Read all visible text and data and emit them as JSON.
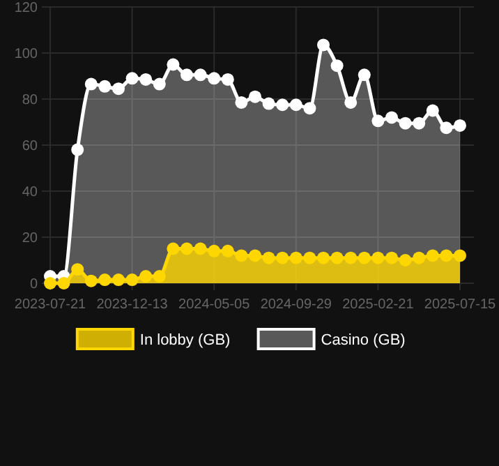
{
  "chart_data": {
    "type": "area",
    "categories": [
      "2023-07-21",
      null,
      null,
      null,
      null,
      null,
      "2023-12-13",
      null,
      null,
      null,
      null,
      null,
      "2024-05-05",
      null,
      null,
      null,
      null,
      null,
      "2024-09-29",
      null,
      null,
      null,
      null,
      null,
      "2025-02-21",
      null,
      null,
      null,
      null,
      null,
      "2025-07-15"
    ],
    "series": [
      {
        "name": "Casino (GB)",
        "color": "#ffffff",
        "values": [
          3,
          3,
          58,
          86.5,
          85.5,
          84.5,
          89,
          88.5,
          86.5,
          95,
          90.5,
          90.5,
          89,
          88.5,
          78.5,
          81,
          78,
          77.5,
          77.5,
          76,
          103.5,
          94.5,
          78.5,
          90.5,
          70.5,
          72,
          69.5,
          69.5,
          75,
          67.5,
          68.5
        ]
      },
      {
        "name": "In lobby (GB)",
        "color": "#ffd700",
        "values": [
          0,
          0,
          6,
          1,
          1.5,
          1.5,
          1.5,
          3,
          3,
          15,
          15,
          15,
          14,
          14,
          12,
          12,
          11,
          11,
          11,
          11,
          11,
          11,
          11,
          11,
          11,
          11,
          10,
          11,
          12,
          12,
          12
        ]
      }
    ],
    "ylim": [
      0,
      120
    ],
    "yticks": [
      0,
      20,
      40,
      60,
      80,
      100,
      120
    ],
    "grid": true,
    "legend": "bottom",
    "marker": "circle"
  }
}
